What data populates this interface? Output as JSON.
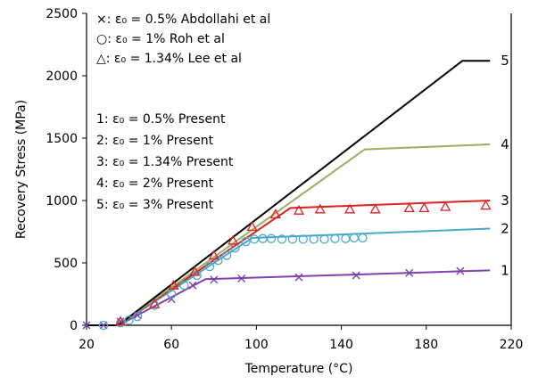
{
  "chart_data": {
    "type": "line",
    "xlabel": "Temperature (°C)",
    "ylabel": "Recovery Stress (MPa)",
    "xlim": [
      20,
      220
    ],
    "ylim": [
      0,
      2500
    ],
    "x_ticks": [
      20,
      60,
      100,
      140,
      180,
      220
    ],
    "y_ticks": [
      0,
      500,
      1000,
      1500,
      2000,
      2500
    ],
    "grid": false,
    "legend_experimental": [
      {
        "marker": "×",
        "label": "ε₀ = 0.5% Abdollahi et al"
      },
      {
        "marker": "○",
        "label": "ε₀ = 1% Roh et al"
      },
      {
        "marker": "△",
        "label": "ε₀ = 1.34% Lee et al"
      }
    ],
    "legend_present": [
      "1: ε₀ = 0.5% Present",
      "2: ε₀ = 1% Present",
      "3: ε₀ = 1.34% Present",
      "4: ε₀ = 2% Present",
      "5: ε₀ = 3% Present"
    ],
    "series": [
      {
        "label": "1",
        "color": "#8040b0",
        "x": [
          20,
          35,
          76,
          210
        ],
        "y": [
          0,
          0,
          370,
          440
        ]
      },
      {
        "label": "2",
        "color": "#4aa8cc",
        "x": [
          20,
          35,
          98,
          210
        ],
        "y": [
          0,
          0,
          700,
          775
        ]
      },
      {
        "label": "3",
        "color": "#dd2222",
        "x": [
          20,
          35,
          116,
          210
        ],
        "y": [
          0,
          0,
          940,
          1000
        ]
      },
      {
        "label": "4",
        "color": "#9ab060",
        "x": [
          20,
          35,
          151,
          210
        ],
        "y": [
          0,
          0,
          1410,
          1450
        ]
      },
      {
        "label": "5",
        "color": "#000000",
        "x": [
          20,
          35,
          197,
          210
        ],
        "y": [
          0,
          0,
          2120,
          2120
        ]
      }
    ],
    "experimental": [
      {
        "marker": "x",
        "color": "#8040b0",
        "x": [
          20,
          28,
          36,
          44,
          60,
          70,
          80,
          93,
          120,
          147,
          172,
          196
        ],
        "y": [
          0,
          0,
          30,
          80,
          210,
          320,
          365,
          375,
          385,
          400,
          420,
          435
        ]
      },
      {
        "marker": "o",
        "color": "#4aa8cc",
        "x": [
          28,
          36,
          40,
          44,
          52,
          60,
          66,
          72,
          78,
          82,
          86,
          90,
          95,
          99,
          103,
          107,
          112,
          117,
          122,
          127,
          132,
          137,
          142,
          146,
          150
        ],
        "y": [
          0,
          20,
          40,
          70,
          160,
          250,
          320,
          400,
          470,
          520,
          560,
          620,
          670,
          690,
          695,
          695,
          690,
          690,
          690,
          690,
          690,
          695,
          695,
          700,
          700
        ]
      },
      {
        "marker": "triangle",
        "color": "#dd2222",
        "x": [
          36,
          52,
          61,
          71,
          80,
          89,
          98,
          109,
          120,
          130,
          144,
          156,
          172,
          179,
          189,
          208
        ],
        "y": [
          30,
          170,
          320,
          430,
          560,
          680,
          790,
          890,
          920,
          930,
          930,
          930,
          940,
          940,
          950,
          960
        ]
      }
    ]
  }
}
